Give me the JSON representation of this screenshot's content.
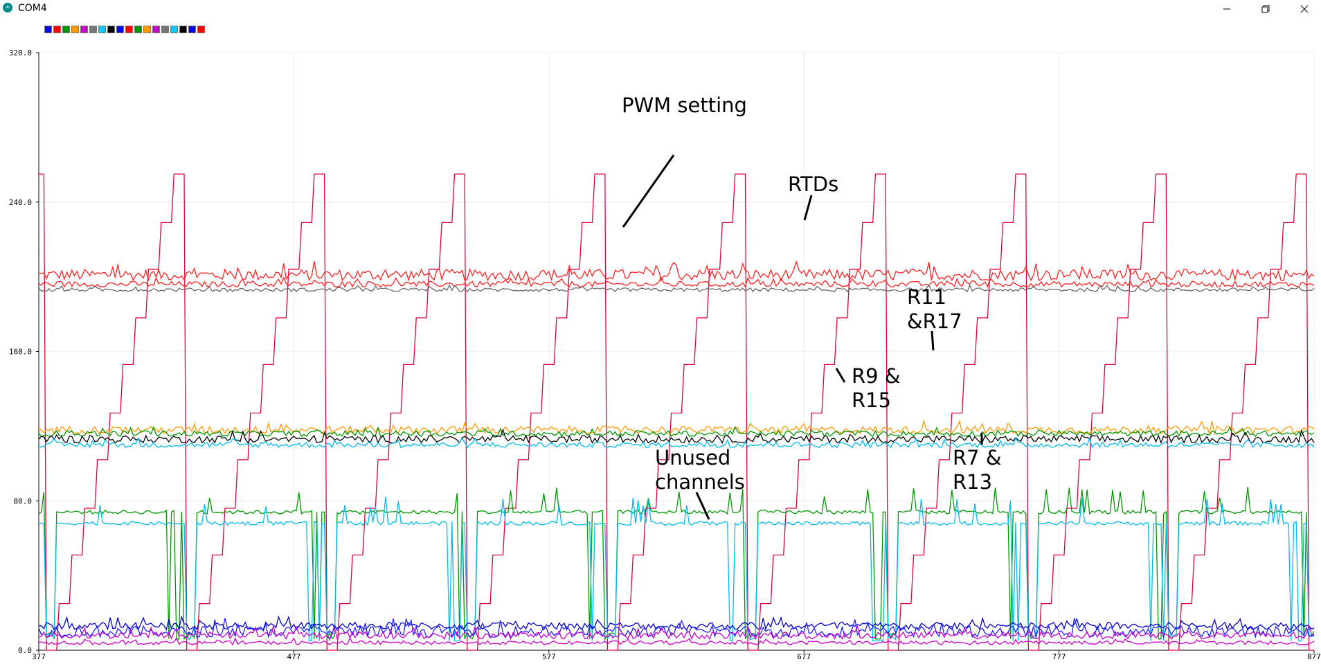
{
  "window": {
    "title": "COM4",
    "icon": "arduino-icon",
    "controls": [
      "minimize-icon",
      "restore-icon",
      "close-icon"
    ]
  },
  "legend_colors": [
    "#0000ff",
    "#ff0000",
    "#009900",
    "#ff9900",
    "#cc00cc",
    "#777777",
    "#00ccff",
    "#000000",
    "#0000ff",
    "#ff0000",
    "#009900",
    "#ff9900",
    "#cc00cc",
    "#777777",
    "#00ccff",
    "#000000",
    "#0000ff",
    "#ff0000"
  ],
  "chart_data": {
    "type": "line",
    "xlim": [
      377,
      877
    ],
    "ylim": [
      0,
      320
    ],
    "x_ticks": [
      "377",
      "477",
      "577",
      "677",
      "777",
      "877"
    ],
    "y_ticks": [
      "0.0",
      "80.0",
      "160.0",
      "240.0",
      "320.0"
    ],
    "grid": true,
    "pwm_period": 55,
    "series": [
      {
        "color": "#e0003a",
        "role": "pwm",
        "levels": [
          0,
          25,
          51,
          76,
          102,
          127,
          153,
          178,
          204,
          229,
          255
        ]
      },
      {
        "color": "#ff2020",
        "level": 201,
        "noise": 3
      },
      {
        "color": "#ff2020",
        "level": 196,
        "noise": 1.5
      },
      {
        "color": "#666666",
        "level": 193,
        "noise": 1
      },
      {
        "color": "#ff9900",
        "level": 118,
        "noise": 2
      },
      {
        "color": "#009900",
        "level": 116,
        "noise": 1.5
      },
      {
        "color": "#000000",
        "level": 113,
        "noise": 2
      },
      {
        "color": "#00bbee",
        "level": 110,
        "noise": 1.5
      },
      {
        "color": "#009900",
        "role": "channel",
        "level": 74,
        "low": 6
      },
      {
        "color": "#00bbee",
        "role": "channel",
        "level": 68,
        "low": 5
      },
      {
        "color": "#0000cc",
        "level": 13,
        "noise": 2
      },
      {
        "color": "#2020ff",
        "level": 10,
        "noise": 3
      },
      {
        "color": "#cc00cc",
        "level": 8,
        "noise": 2
      },
      {
        "color": "#cc00cc",
        "level": 4,
        "noise": 1
      }
    ],
    "annotations": [
      {
        "text": "PWM setting"
      },
      {
        "text": "RTDs"
      },
      {
        "text": "R11"
      },
      {
        "text": "&R17"
      },
      {
        "text": "R9 &"
      },
      {
        "text": "R15"
      },
      {
        "text": "R7 &"
      },
      {
        "text": "R13"
      },
      {
        "text": "Unused"
      },
      {
        "text": "channels"
      }
    ]
  }
}
